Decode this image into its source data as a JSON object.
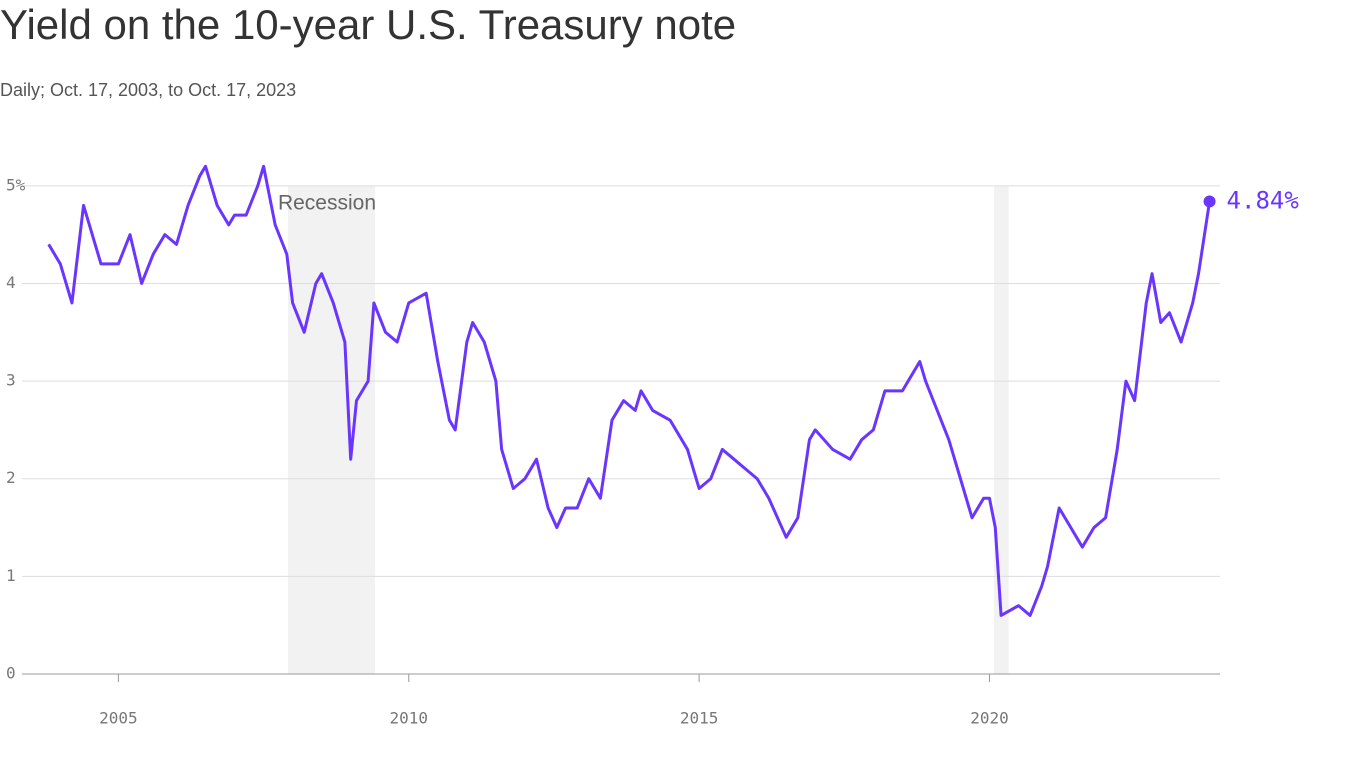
{
  "chart_data": {
    "type": "line",
    "title": "Yield on the 10-year U.S. Treasury note",
    "subtitle": "Daily; Oct. 17, 2003, to Oct. 17, 2023",
    "x": [
      2003.8,
      2004.0,
      2004.2,
      2004.4,
      2004.5,
      2004.7,
      2004.9,
      2005.0,
      2005.2,
      2005.4,
      2005.6,
      2005.8,
      2006.0,
      2006.2,
      2006.4,
      2006.5,
      2006.7,
      2006.9,
      2007.0,
      2007.2,
      2007.4,
      2007.5,
      2007.7,
      2007.9,
      2008.0,
      2008.2,
      2008.4,
      2008.5,
      2008.7,
      2008.9,
      2009.0,
      2009.1,
      2009.3,
      2009.4,
      2009.6,
      2009.8,
      2010.0,
      2010.3,
      2010.5,
      2010.7,
      2010.8,
      2011.0,
      2011.1,
      2011.3,
      2011.5,
      2011.6,
      2011.8,
      2012.0,
      2012.2,
      2012.4,
      2012.55,
      2012.7,
      2012.9,
      2013.1,
      2013.3,
      2013.5,
      2013.7,
      2013.9,
      2014.0,
      2014.2,
      2014.5,
      2014.8,
      2015.0,
      2015.2,
      2015.4,
      2015.6,
      2015.8,
      2016.0,
      2016.2,
      2016.5,
      2016.7,
      2016.9,
      2017.0,
      2017.3,
      2017.6,
      2017.8,
      2018.0,
      2018.2,
      2018.5,
      2018.8,
      2018.9,
      2019.1,
      2019.3,
      2019.5,
      2019.7,
      2019.9,
      2020.0,
      2020.1,
      2020.2,
      2020.5,
      2020.7,
      2020.9,
      2021.0,
      2021.2,
      2021.4,
      2021.6,
      2021.8,
      2022.0,
      2022.2,
      2022.35,
      2022.5,
      2022.7,
      2022.8,
      2022.95,
      2023.1,
      2023.3,
      2023.5,
      2023.6,
      2023.79
    ],
    "series": [
      {
        "color": "#6a35ff",
        "values": [
          4.4,
          4.2,
          3.8,
          4.8,
          4.6,
          4.2,
          4.2,
          4.2,
          4.5,
          4.0,
          4.3,
          4.5,
          4.4,
          4.8,
          5.1,
          5.2,
          4.8,
          4.6,
          4.7,
          4.7,
          5.0,
          5.2,
          4.6,
          4.3,
          3.8,
          3.5,
          4.0,
          4.1,
          3.8,
          3.4,
          2.2,
          2.8,
          3.0,
          3.8,
          3.5,
          3.4,
          3.8,
          3.9,
          3.2,
          2.6,
          2.5,
          3.4,
          3.6,
          3.4,
          3.0,
          2.3,
          1.9,
          2.0,
          2.2,
          1.7,
          1.5,
          1.7,
          1.7,
          2.0,
          1.8,
          2.6,
          2.8,
          2.7,
          2.9,
          2.7,
          2.6,
          2.3,
          1.9,
          2.0,
          2.3,
          2.2,
          2.1,
          2.0,
          1.8,
          1.4,
          1.6,
          2.4,
          2.5,
          2.3,
          2.2,
          2.4,
          2.5,
          2.9,
          2.9,
          3.2,
          3.0,
          2.7,
          2.4,
          2.0,
          1.6,
          1.8,
          1.8,
          1.5,
          0.6,
          0.7,
          0.6,
          0.9,
          1.1,
          1.7,
          1.5,
          1.3,
          1.5,
          1.6,
          2.3,
          3.0,
          2.8,
          3.8,
          4.1,
          3.6,
          3.7,
          3.4,
          3.8,
          4.1,
          4.84
        ]
      }
    ],
    "xlim": [
      2003.34,
      2023.97
    ],
    "xticks": [
      2005,
      2010,
      2015,
      2020
    ],
    "ylim": [
      0,
      5.5
    ],
    "yticks": [
      0,
      1,
      2,
      3,
      4,
      {
        "value": 5,
        "label": "5%"
      }
    ],
    "grid": true,
    "shaded_ranges": [
      {
        "x": [
          2007.92,
          2009.42
        ],
        "label": "Recession"
      },
      {
        "x": [
          2020.08,
          2020.33
        ]
      }
    ],
    "annotation": {
      "x": 2023.79,
      "value": 4.84,
      "label": "4.84%"
    }
  }
}
